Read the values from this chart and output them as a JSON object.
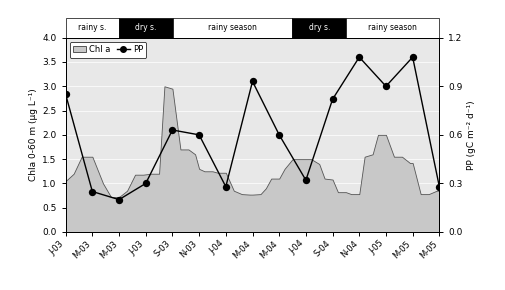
{
  "x_labels": [
    "J-03",
    "M-03",
    "M-03",
    "J-03",
    "S-03",
    "N-03",
    "J-04",
    "M-04",
    "M-04",
    "J-04",
    "S-04",
    "N-04",
    "J-05",
    "M-05",
    "M-05"
  ],
  "chl_a_x": [
    0,
    0.3,
    0.6,
    1,
    1.4,
    1.7,
    2,
    2.3,
    2.6,
    2.9,
    3.2,
    3.5,
    3.7,
    4,
    4.3,
    4.6,
    4.85,
    5,
    5.2,
    5.5,
    5.7,
    6,
    6.3,
    6.6,
    6.9,
    7,
    7.3,
    7.5,
    7.7,
    8,
    8.2,
    8.5,
    8.7,
    9,
    9.2,
    9.5,
    9.7,
    10,
    10.2,
    10.5,
    10.7,
    11,
    11.2,
    11.5,
    11.7,
    12,
    12.3,
    12.6,
    12.9,
    13,
    13.3,
    13.6,
    13.9,
    14
  ],
  "chl_a_y": [
    1.05,
    1.2,
    1.55,
    1.55,
    1.0,
    0.72,
    0.72,
    0.85,
    1.18,
    1.18,
    1.2,
    1.2,
    3.0,
    2.95,
    1.7,
    1.7,
    1.6,
    1.3,
    1.25,
    1.25,
    1.22,
    1.22,
    0.85,
    0.78,
    0.77,
    0.77,
    0.78,
    0.9,
    1.1,
    1.1,
    1.3,
    1.5,
    1.5,
    1.5,
    1.5,
    1.4,
    1.1,
    1.08,
    0.82,
    0.82,
    0.78,
    0.78,
    1.55,
    1.6,
    2.0,
    2.0,
    1.55,
    1.55,
    1.42,
    1.42,
    0.78,
    0.78,
    0.85,
    0.85
  ],
  "pp_x": [
    0,
    1,
    2,
    3,
    4,
    5,
    6,
    7,
    8,
    9,
    10,
    11,
    12,
    13,
    14
  ],
  "pp_y": [
    0.85,
    0.25,
    0.2,
    0.3,
    0.63,
    0.6,
    0.28,
    0.93,
    0.6,
    0.32,
    0.82,
    1.08,
    0.9,
    1.08,
    0.28
  ],
  "seasons": [
    {
      "label": "rainy s.",
      "xstart": 0.0,
      "xend": 0.143,
      "color": "white",
      "textcolor": "black"
    },
    {
      "label": "dry s.",
      "xstart": 0.143,
      "xend": 0.286,
      "color": "black",
      "textcolor": "white"
    },
    {
      "label": "rainy season",
      "xstart": 0.286,
      "xend": 0.607,
      "color": "white",
      "textcolor": "black"
    },
    {
      "label": "dry s.",
      "xstart": 0.607,
      "xend": 0.75,
      "color": "black",
      "textcolor": "white"
    },
    {
      "label": "rainy season",
      "xstart": 0.75,
      "xend": 1.0,
      "color": "white",
      "textcolor": "black"
    }
  ],
  "ylim_left": [
    0.0,
    4.0
  ],
  "ylim_right": [
    0.0,
    1.2
  ],
  "yticks_left": [
    0.0,
    0.5,
    1.0,
    1.5,
    2.0,
    2.5,
    3.0,
    3.5,
    4.0
  ],
  "yticks_right": [
    0.0,
    0.3,
    0.6,
    0.9,
    1.2
  ],
  "fill_color": "#c8c8c8",
  "fill_edge_color": "#555555",
  "line_color": "black",
  "dot_color": "black",
  "bg_color": "#e8e8e8",
  "ylabel_left": "Chla 0-60 m (μg L⁻¹)",
  "ylabel_right": "PP (gC m⁻² d⁻¹)"
}
